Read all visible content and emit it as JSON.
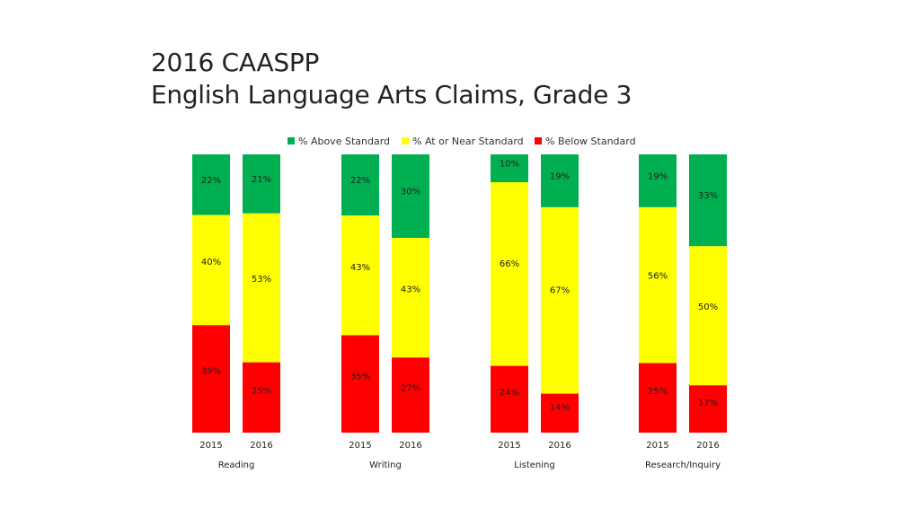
{
  "slide": {
    "title_line1": "2016 CAASPP",
    "title_line2": "English Language Arts Claims, Grade 3"
  },
  "chart_data": {
    "type": "bar",
    "stacked": true,
    "normalized_percent": true,
    "legend_position": "top",
    "grid": false,
    "groups": [
      {
        "label": "Reading",
        "years": [
          "2015",
          "2016"
        ]
      },
      {
        "label": "Writing",
        "years": [
          "2015",
          "2016"
        ]
      },
      {
        "label": "Listening",
        "years": [
          "2015",
          "2016"
        ]
      },
      {
        "label": "Research/Inquiry",
        "years": [
          "2015",
          "2016"
        ]
      }
    ],
    "series": [
      {
        "name": "% Above Standard",
        "color": "#00b050",
        "values": [
          [
            22,
            21
          ],
          [
            22,
            30
          ],
          [
            10,
            19
          ],
          [
            19,
            33
          ]
        ]
      },
      {
        "name": "% At or Near Standard",
        "color": "#ffff00",
        "values": [
          [
            40,
            53
          ],
          [
            43,
            43
          ],
          [
            66,
            67
          ],
          [
            56,
            50
          ]
        ]
      },
      {
        "name": "% Below Standard",
        "color": "#ff0000",
        "values": [
          [
            39,
            25
          ],
          [
            35,
            27
          ],
          [
            24,
            14
          ],
          [
            25,
            17
          ]
        ]
      }
    ]
  }
}
